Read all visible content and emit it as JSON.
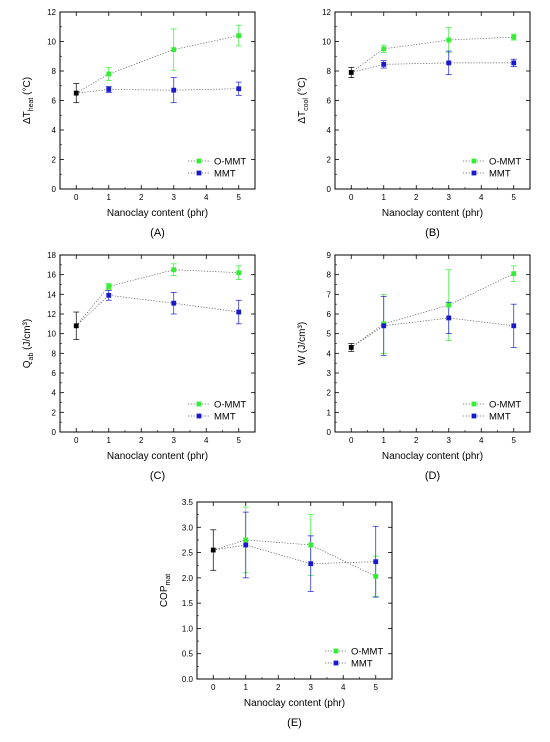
{
  "colors": {
    "o_mmt": "#33ee33",
    "mmt": "#1a1acc",
    "control": "#000000"
  },
  "chart_data": [
    {
      "id": "A",
      "type": "scatter",
      "panel_label": "(A)",
      "xlabel": "Nanoclay content (phr)",
      "ylabel": {
        "main": "ΔT",
        "sub": "heat",
        "unit": " (°C)"
      },
      "xlim": [
        -0.5,
        5.5
      ],
      "ylim": [
        0,
        12
      ],
      "xticks": [
        0,
        1,
        2,
        3,
        4,
        5
      ],
      "yticks": [
        0,
        2,
        4,
        6,
        8,
        10,
        12
      ],
      "legend": {
        "position": "bottom-right"
      },
      "control": {
        "x": 0,
        "y": 6.5,
        "err": 0.65
      },
      "series": [
        {
          "name": "O-MMT",
          "color": "#33ee33",
          "x": [
            0,
            1,
            3,
            5
          ],
          "y": [
            6.5,
            7.8,
            9.45,
            10.4
          ],
          "err": [
            0.65,
            0.45,
            1.4,
            0.7
          ]
        },
        {
          "name": "MMT",
          "color": "#1a1acc",
          "x": [
            0,
            1,
            3,
            5
          ],
          "y": [
            6.5,
            6.75,
            6.7,
            6.8
          ],
          "err": [
            0.65,
            0.2,
            0.85,
            0.45
          ]
        }
      ]
    },
    {
      "id": "B",
      "type": "scatter",
      "panel_label": "(B)",
      "xlabel": "Nanoclay content (phr)",
      "ylabel": {
        "main": "ΔT",
        "sub": "cool",
        "unit": " (°C)"
      },
      "xlim": [
        -0.5,
        5.5
      ],
      "ylim": [
        0,
        12
      ],
      "xticks": [
        0,
        1,
        2,
        3,
        4,
        5
      ],
      "yticks": [
        0,
        2,
        4,
        6,
        8,
        10,
        12
      ],
      "legend": {
        "position": "bottom-right"
      },
      "control": {
        "x": 0,
        "y": 7.9,
        "err": 0.35
      },
      "series": [
        {
          "name": "O-MMT",
          "color": "#33ee33",
          "x": [
            0,
            1,
            3,
            5
          ],
          "y": [
            7.9,
            9.5,
            10.1,
            10.3
          ],
          "err": [
            0.35,
            0.25,
            0.85,
            0.2
          ]
        },
        {
          "name": "MMT",
          "color": "#1a1acc",
          "x": [
            0,
            1,
            3,
            5
          ],
          "y": [
            7.9,
            8.45,
            8.55,
            8.55
          ],
          "err": [
            0.35,
            0.25,
            0.8,
            0.25
          ]
        }
      ]
    },
    {
      "id": "C",
      "type": "scatter",
      "panel_label": "(C)",
      "xlabel": "Nanoclay content (phr)",
      "ylabel": {
        "main": "Q",
        "sub": "ab",
        "unit": " (J/cm³)"
      },
      "xlim": [
        -0.5,
        5.5
      ],
      "ylim": [
        0,
        18
      ],
      "xticks": [
        0,
        1,
        2,
        3,
        4,
        5
      ],
      "yticks": [
        0,
        2,
        4,
        6,
        8,
        10,
        12,
        14,
        16,
        18
      ],
      "legend": {
        "position": "bottom-right"
      },
      "control": {
        "x": 0,
        "y": 10.8,
        "err": 1.4
      },
      "series": [
        {
          "name": "O-MMT",
          "color": "#33ee33",
          "x": [
            0,
            1,
            3,
            5
          ],
          "y": [
            10.8,
            14.8,
            16.5,
            16.2
          ],
          "err": [
            1.4,
            0.3,
            0.6,
            0.7
          ]
        },
        {
          "name": "MMT",
          "color": "#1a1acc",
          "x": [
            0,
            1,
            3,
            5
          ],
          "y": [
            10.8,
            13.9,
            13.1,
            12.2
          ],
          "err": [
            1.4,
            0.5,
            1.1,
            1.2
          ]
        }
      ]
    },
    {
      "id": "D",
      "type": "scatter",
      "panel_label": "(D)",
      "xlabel": "Nanoclay content (phr)",
      "ylabel": {
        "main": "W",
        "sub": "",
        "unit": " (J/cm³)"
      },
      "xlim": [
        -0.5,
        5.5
      ],
      "ylim": [
        0,
        9
      ],
      "xticks": [
        0,
        1,
        2,
        3,
        4,
        5
      ],
      "yticks": [
        0,
        1,
        2,
        3,
        4,
        5,
        6,
        7,
        8,
        9
      ],
      "legend": {
        "position": "bottom-right"
      },
      "control": {
        "x": 0,
        "y": 4.3,
        "err": 0.2
      },
      "series": [
        {
          "name": "O-MMT",
          "color": "#33ee33",
          "x": [
            0,
            1,
            3,
            5
          ],
          "y": [
            4.3,
            5.5,
            6.45,
            8.05
          ],
          "err": [
            0.2,
            1.5,
            1.8,
            0.4
          ]
        },
        {
          "name": "MMT",
          "color": "#1a1acc",
          "x": [
            0,
            1,
            3,
            5
          ],
          "y": [
            4.3,
            5.4,
            5.8,
            5.4
          ],
          "err": [
            0.2,
            1.5,
            0.8,
            1.1
          ]
        }
      ]
    },
    {
      "id": "E",
      "type": "scatter",
      "panel_label": "(E)",
      "xlabel": "Nanoclay content (phr)",
      "ylabel": {
        "main": "COP",
        "sub": "mat",
        "unit": ""
      },
      "xlim": [
        -0.5,
        5.5
      ],
      "ylim": [
        0,
        3.5
      ],
      "xticks": [
        0,
        1,
        2,
        3,
        4,
        5
      ],
      "yticks": [
        0.0,
        0.5,
        1.0,
        1.5,
        2.0,
        2.5,
        3.0,
        3.5
      ],
      "ytick_decimals": 1,
      "legend": {
        "position": "bottom-right"
      },
      "control": {
        "x": 0,
        "y": 2.55,
        "err": 0.4
      },
      "series": [
        {
          "name": "O-MMT",
          "color": "#33ee33",
          "x": [
            0,
            1,
            3,
            5
          ],
          "y": [
            2.55,
            2.75,
            2.65,
            2.03
          ],
          "err": [
            0.4,
            0.65,
            0.6,
            0.4
          ]
        },
        {
          "name": "MMT",
          "color": "#1a1acc",
          "x": [
            0,
            1,
            3,
            5
          ],
          "y": [
            2.55,
            2.65,
            2.28,
            2.32
          ],
          "err": [
            0.4,
            0.65,
            0.55,
            0.7
          ]
        }
      ]
    }
  ]
}
